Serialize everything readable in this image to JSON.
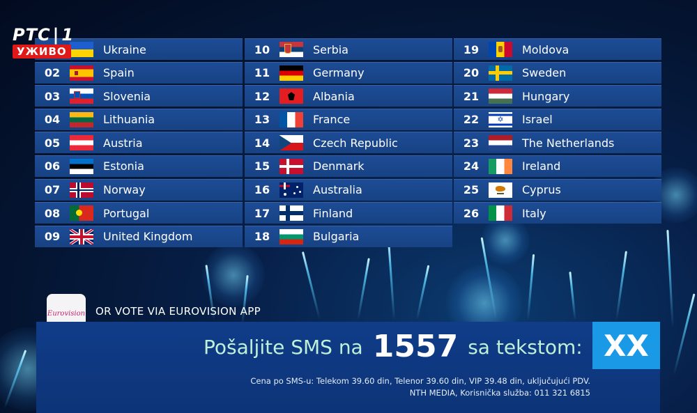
{
  "channel": {
    "name": "РТС",
    "number": "1",
    "live_label": "УЖИВО"
  },
  "countries": [
    {
      "num": "",
      "name": "Ukraine",
      "flag": "ukraine-flag-icon"
    },
    {
      "num": "02",
      "name": "Spain",
      "flag": "spain-flag-icon"
    },
    {
      "num": "03",
      "name": "Slovenia",
      "flag": "slovenia-flag-icon"
    },
    {
      "num": "04",
      "name": "Lithuania",
      "flag": "lithuania-flag-icon"
    },
    {
      "num": "05",
      "name": "Austria",
      "flag": "austria-flag-icon"
    },
    {
      "num": "06",
      "name": "Estonia",
      "flag": "estonia-flag-icon"
    },
    {
      "num": "07",
      "name": "Norway",
      "flag": "norway-flag-icon"
    },
    {
      "num": "08",
      "name": "Portugal",
      "flag": "portugal-flag-icon"
    },
    {
      "num": "09",
      "name": "United Kingdom",
      "flag": "united-kingdom-flag-icon"
    },
    {
      "num": "10",
      "name": "Serbia",
      "flag": "serbia-flag-icon"
    },
    {
      "num": "11",
      "name": "Germany",
      "flag": "germany-flag-icon"
    },
    {
      "num": "12",
      "name": "Albania",
      "flag": "albania-flag-icon"
    },
    {
      "num": "13",
      "name": "France",
      "flag": "france-flag-icon"
    },
    {
      "num": "14",
      "name": "Czech Republic",
      "flag": "czech-republic-flag-icon"
    },
    {
      "num": "15",
      "name": "Denmark",
      "flag": "denmark-flag-icon"
    },
    {
      "num": "16",
      "name": "Australia",
      "flag": "australia-flag-icon"
    },
    {
      "num": "17",
      "name": "Finland",
      "flag": "finland-flag-icon"
    },
    {
      "num": "18",
      "name": "Bulgaria",
      "flag": "bulgaria-flag-icon"
    },
    {
      "num": "19",
      "name": "Moldova",
      "flag": "moldova-flag-icon"
    },
    {
      "num": "20",
      "name": "Sweden",
      "flag": "sweden-flag-icon"
    },
    {
      "num": "21",
      "name": "Hungary",
      "flag": "hungary-flag-icon"
    },
    {
      "num": "22",
      "name": "Israel",
      "flag": "israel-flag-icon"
    },
    {
      "num": "23",
      "name": "The Netherlands",
      "flag": "netherlands-flag-icon"
    },
    {
      "num": "24",
      "name": "Ireland",
      "flag": "ireland-flag-icon"
    },
    {
      "num": "25",
      "name": "Cyprus",
      "flag": "cyprus-flag-icon"
    },
    {
      "num": "26",
      "name": "Italy",
      "flag": "italy-flag-icon"
    }
  ],
  "app": {
    "icon_text": "Eurovision",
    "label": "OR VOTE VIA EUROVISION APP"
  },
  "sms": {
    "prefix": "Pošaljite SMS na",
    "number": "1557",
    "suffix": "sa tekstom:",
    "code": "XX",
    "fine_line_1": "Cena po SMS-u: Telekom 39.60 din, Telenor 39.60 din, VIP 39.48 din, uključujući PDV.",
    "fine_line_2": "NTH MEDIA, Korisnička služba: 011 321 6815"
  },
  "colors": {
    "row_blue": "#1d4c96",
    "accent_blue": "#1a9ae6",
    "live_red": "#e01818",
    "sms_text": "#bff0d8"
  }
}
